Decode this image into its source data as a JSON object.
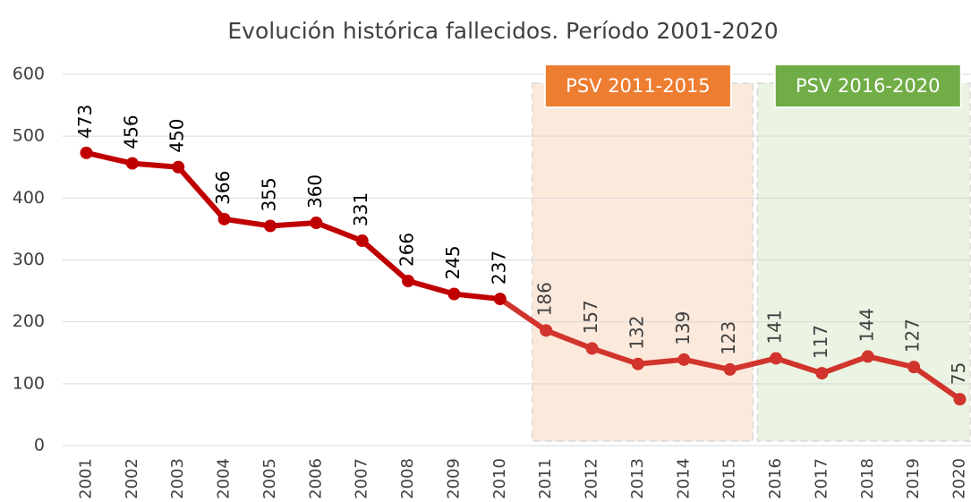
{
  "chart_data": {
    "type": "line",
    "title": "Evolución histórica fallecidos. Período 2001-2020",
    "categories": [
      "2001",
      "2002",
      "2003",
      "2004",
      "2005",
      "2006",
      "2007",
      "2008",
      "2009",
      "2010",
      "2011",
      "2012",
      "2013",
      "2014",
      "2015",
      "2016",
      "2017",
      "2018",
      "2019",
      "2020"
    ],
    "series": [
      {
        "color": "#c00000",
        "values": [
          473,
          456,
          450,
          366,
          355,
          360,
          331,
          266,
          245,
          237,
          186,
          157,
          132,
          139,
          123,
          141,
          117,
          144,
          127,
          75
        ]
      }
    ],
    "ylim": [
      0,
      600
    ],
    "yticks": [
      0,
      100,
      200,
      300,
      400,
      500,
      600
    ],
    "grid": true,
    "periods": [
      {
        "label": "PSV 2011-2015",
        "start": "2011",
        "end": "2015",
        "color": "#ed7d31",
        "fill": "#fbe9dc",
        "line_color": "#d0342c"
      },
      {
        "label": "PSV 2016-2020",
        "start": "2016",
        "end": "2020",
        "color": "#70ad47",
        "fill": "#ebf3e3",
        "line_color": "#d0342c"
      }
    ]
  }
}
